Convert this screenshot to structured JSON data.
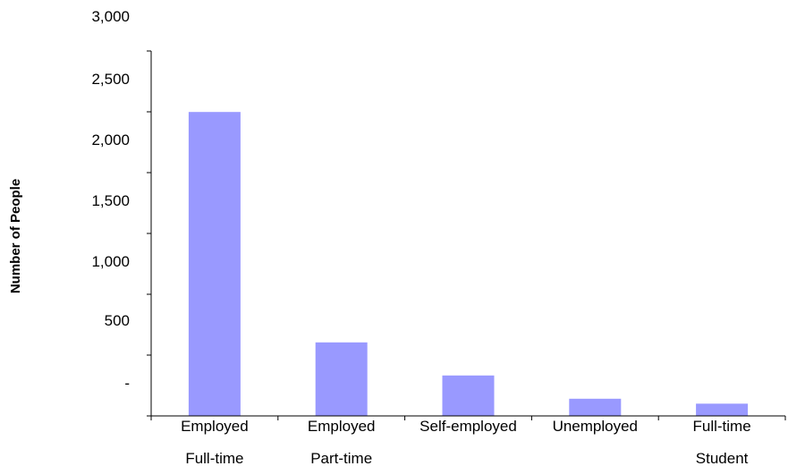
{
  "chart_data": {
    "type": "bar",
    "title": "",
    "xlabel": "",
    "ylabel": "Number of People",
    "categories": [
      [
        "Employed",
        "Full-time"
      ],
      [
        "Employed",
        "Part-time"
      ],
      [
        "Self-employed"
      ],
      [
        "Unemployed"
      ],
      [
        "Full-time",
        "Student"
      ]
    ],
    "values": [
      2480,
      600,
      330,
      140,
      100
    ],
    "ylim": [
      0,
      3000
    ],
    "yticks": [
      0,
      500,
      1000,
      1500,
      2000,
      2500,
      3000
    ],
    "ytick_labels": [
      "-",
      "500",
      "1,000",
      "1,500",
      "2,000",
      "2,500",
      "3,000"
    ],
    "grid": false,
    "legend": "none",
    "colors": {
      "bar": "#9999ff",
      "axis": "#000000"
    }
  }
}
